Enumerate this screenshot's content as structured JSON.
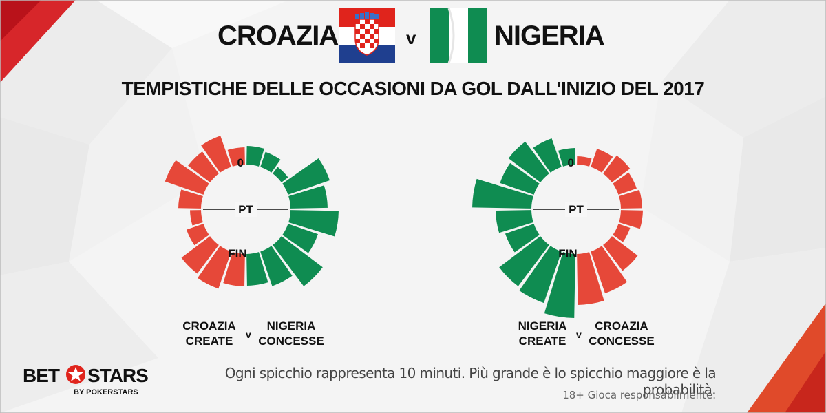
{
  "header": {
    "team_left": "CROAZIA",
    "vs": "v",
    "team_right": "NIGERIA",
    "subtitle": "TEMPISTICHE DELLE OCCASIONI DA GOL DALL'INIZIO DEL 2017"
  },
  "colors": {
    "croatia": "#e64839",
    "nigeria": "#0f8c51",
    "flag_red": "#e0241c",
    "flag_blue": "#1f3f8f"
  },
  "chart_data": [
    {
      "type": "radial-bar",
      "labels": {
        "start": "0",
        "half": "PT",
        "end": "FIN"
      },
      "series": [
        {
          "name": "CROAZIA CREATE",
          "side": "left",
          "color": "#e64839",
          "segments": [
            25,
            48,
            40,
            59,
            33,
            16,
            26,
            52,
            57,
            47
          ]
        },
        {
          "name": "NIGERIA CONCESSE",
          "side": "right",
          "color": "#0f8c51",
          "segments": [
            27,
            23,
            12,
            64,
            54,
            70,
            46,
            75,
            53,
            46
          ]
        }
      ],
      "caption": {
        "left": [
          "CROAZIA",
          "CREATE"
        ],
        "v": "v",
        "right": [
          "NIGERIA",
          "CONCESSE"
        ]
      }
    },
    {
      "type": "radial-bar",
      "labels": {
        "start": "0",
        "half": "PT",
        "end": "FIN"
      },
      "series": [
        {
          "name": "NIGERIA CREATE",
          "side": "left",
          "color": "#0f8c51",
          "segments": [
            24,
            44,
            58,
            52,
            86,
            52,
            44,
            75,
            79,
            93
          ]
        },
        {
          "name": "CROAZIA CONCESSE",
          "side": "right",
          "color": "#e64839",
          "segments": [
            12,
            28,
            33,
            28,
            31,
            32,
            18,
            47,
            64,
            74
          ]
        }
      ],
      "caption": {
        "left": [
          "NIGERIA",
          "CREATE"
        ],
        "v": "v",
        "right": [
          "CROAZIA",
          "CONCESSE"
        ]
      }
    }
  ],
  "footer": {
    "note": "Ogni spicchio rappresenta 10 minuti. Più grande è lo spicchio maggiore è la probabilità.",
    "legal": "18+ Gioca responsabilmente.",
    "logo_left": "BET",
    "logo_right": "STARS",
    "logo_sub": "BY POKERSTARS"
  }
}
